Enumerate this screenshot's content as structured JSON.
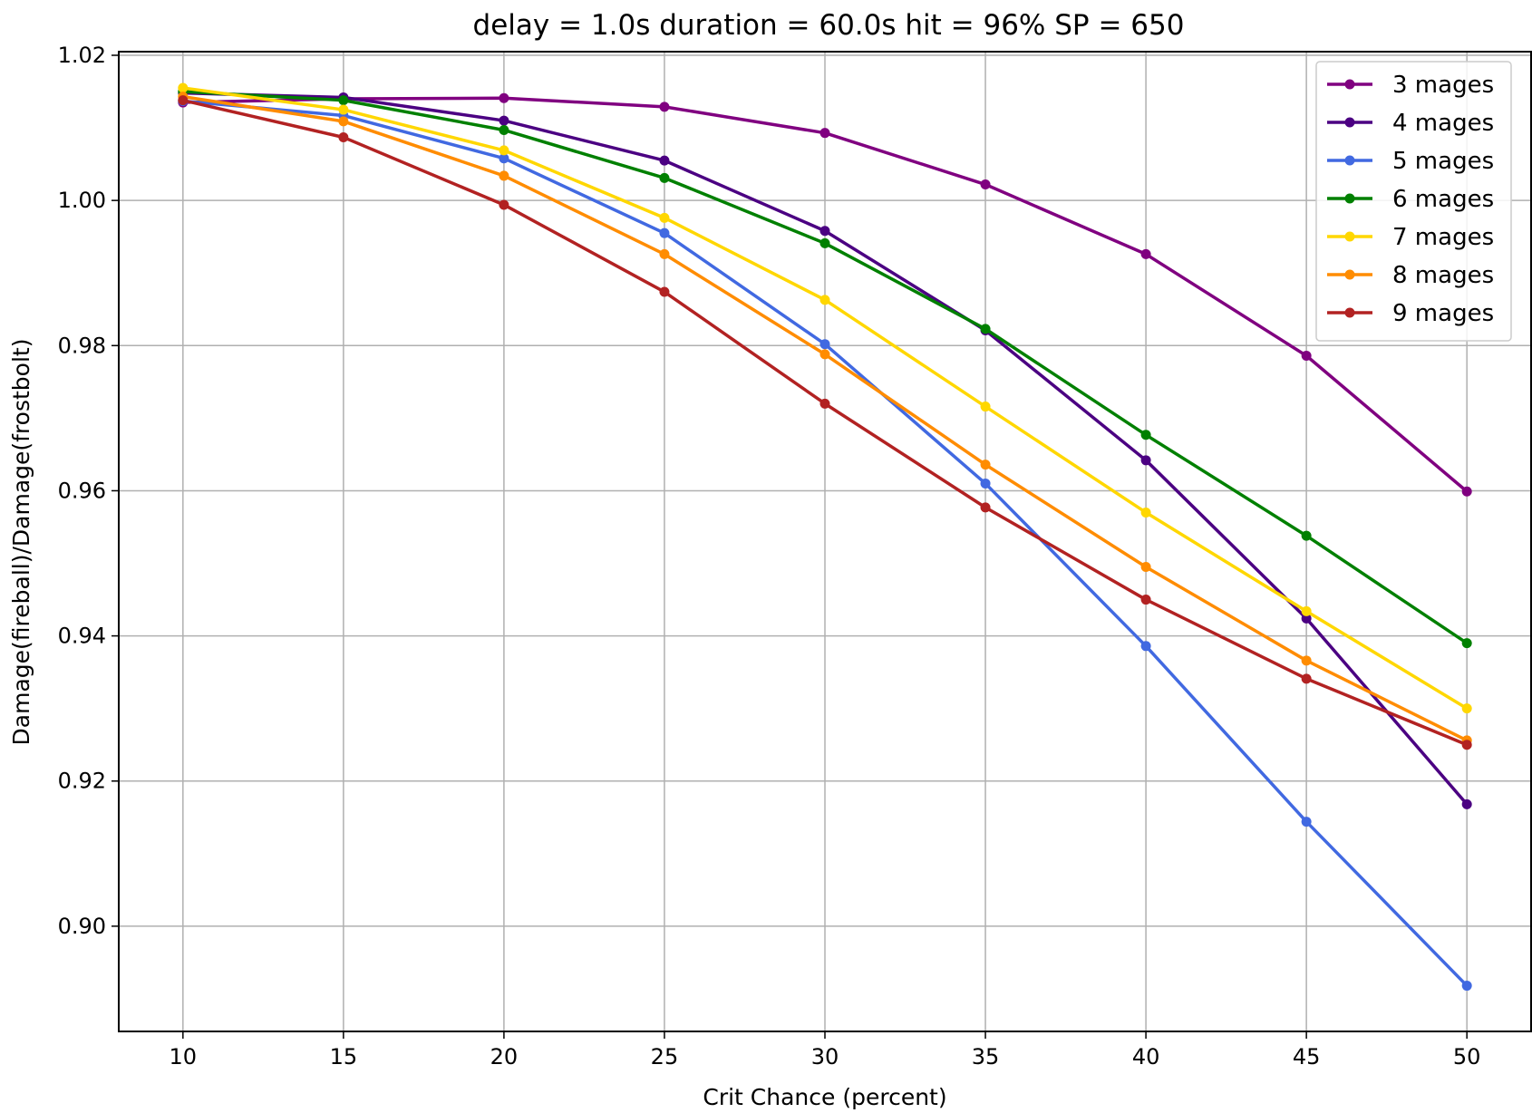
{
  "chart_data": {
    "type": "line",
    "title": "delay = 1.0s duration = 60.0s hit = 96% SP = 650",
    "xlabel": "Crit Chance (percent)",
    "ylabel": "Damage(fireball)/Damage(frostbolt)",
    "xlim": [
      8,
      52
    ],
    "ylim": [
      0.8855,
      1.0205
    ],
    "x_ticks": [
      10,
      15,
      20,
      25,
      30,
      35,
      40,
      45,
      50
    ],
    "x_tick_labels": [
      "10",
      "15",
      "20",
      "25",
      "30",
      "35",
      "40",
      "45",
      "50"
    ],
    "y_ticks": [
      0.9,
      0.92,
      0.94,
      0.96,
      0.98,
      1.0,
      1.02
    ],
    "y_tick_labels": [
      "0.90",
      "0.92",
      "0.94",
      "0.96",
      "0.98",
      "1.00",
      "1.02"
    ],
    "grid": true,
    "legend_position": "top-right",
    "x": [
      10,
      15,
      20,
      25,
      30,
      35,
      40,
      45,
      50
    ],
    "series": [
      {
        "name": "3 mages",
        "color": "#800080",
        "values": [
          1.0135,
          1.014,
          1.0141,
          1.0129,
          1.0093,
          1.0022,
          0.9926,
          0.9786,
          0.9599
        ]
      },
      {
        "name": "4 mages",
        "color": "#4b0082",
        "values": [
          1.0148,
          1.0142,
          1.011,
          1.0055,
          0.9958,
          0.9821,
          0.9642,
          0.9424,
          0.9168
        ]
      },
      {
        "name": "5 mages",
        "color": "#4169e1",
        "values": [
          1.0137,
          1.0117,
          1.0058,
          0.9955,
          0.9802,
          0.961,
          0.9386,
          0.9144,
          0.8918
        ]
      },
      {
        "name": "6 mages",
        "color": "#008000",
        "values": [
          1.015,
          1.0138,
          1.0097,
          1.0031,
          0.9941,
          0.9823,
          0.9677,
          0.9538,
          0.939
        ]
      },
      {
        "name": "7 mages",
        "color": "#ffd700",
        "values": [
          1.0155,
          1.0125,
          1.0069,
          0.9976,
          0.9863,
          0.9716,
          0.957,
          0.9434,
          0.93
        ]
      },
      {
        "name": "8 mages",
        "color": "#ff8c00",
        "values": [
          1.0143,
          1.0109,
          1.0034,
          0.9926,
          0.9788,
          0.9636,
          0.9495,
          0.9366,
          0.9256
        ]
      },
      {
        "name": "9 mages",
        "color": "#b22222",
        "values": [
          1.0138,
          1.0087,
          0.9994,
          0.9874,
          0.972,
          0.9577,
          0.945,
          0.9341,
          0.925
        ]
      }
    ]
  }
}
